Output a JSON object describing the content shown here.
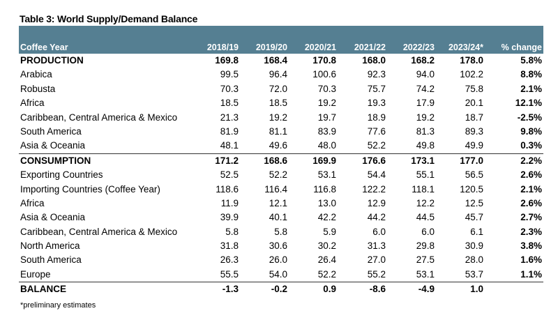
{
  "title": "Table 3: World Supply/Demand Balance",
  "header": [
    "Coffee Year",
    "2018/19",
    "2019/20",
    "2020/21",
    "2021/22",
    "2022/23",
    "2023/24*",
    "% change"
  ],
  "colors": {
    "header_bg": "#557f92",
    "header_text": "#ffffff"
  },
  "rows": [
    {
      "label": "PRODUCTION",
      "values": [
        "169.8",
        "168.4",
        "170.8",
        "168.0",
        "168.2",
        "178.0"
      ],
      "pct": "5.8%",
      "bold": true
    },
    {
      "label": "Arabica",
      "values": [
        "99.5",
        "96.4",
        "100.6",
        "92.3",
        "94.0",
        "102.2"
      ],
      "pct": "8.8%"
    },
    {
      "label": "Robusta",
      "values": [
        "70.3",
        "72.0",
        "70.3",
        "75.7",
        "74.2",
        "75.8"
      ],
      "pct": "2.1%"
    },
    {
      "label": "Africa",
      "values": [
        "18.5",
        "18.5",
        "19.2",
        "19.3",
        "17.9",
        "20.1"
      ],
      "pct": "12.1%"
    },
    {
      "label": "Caribbean, Central America & Mexico",
      "values": [
        "21.3",
        "19.2",
        "19.7",
        "18.9",
        "19.2",
        "18.7"
      ],
      "pct": "-2.5%"
    },
    {
      "label": "South America",
      "values": [
        "81.9",
        "81.1",
        "83.9",
        "77.6",
        "81.3",
        "89.3"
      ],
      "pct": "9.8%"
    },
    {
      "label": "Asia & Oceania",
      "values": [
        "48.1",
        "49.6",
        "48.0",
        "52.2",
        "49.8",
        "49.9"
      ],
      "pct": "0.3%"
    },
    {
      "label": "CONSUMPTION",
      "values": [
        "171.2",
        "168.6",
        "169.9",
        "176.6",
        "173.1",
        "177.0"
      ],
      "pct": "2.2%",
      "bold": true,
      "sep": true
    },
    {
      "label": "Exporting Countries",
      "values": [
        "52.5",
        "52.2",
        "53.1",
        "54.4",
        "55.1",
        "56.5"
      ],
      "pct": "2.6%"
    },
    {
      "label": "Importing Countries (Coffee Year)",
      "values": [
        "118.6",
        "116.4",
        "116.8",
        "122.2",
        "118.1",
        "120.5"
      ],
      "pct": "2.1%"
    },
    {
      "label": "Africa",
      "values": [
        "11.9",
        "12.1",
        "13.0",
        "12.9",
        "12.2",
        "12.5"
      ],
      "pct": "2.6%"
    },
    {
      "label": "Asia & Oceania",
      "values": [
        "39.9",
        "40.1",
        "42.2",
        "44.2",
        "44.5",
        "45.7"
      ],
      "pct": "2.7%"
    },
    {
      "label": "Caribbean, Central America & Mexico",
      "values": [
        "5.8",
        "5.8",
        "5.9",
        "6.0",
        "6.0",
        "6.1"
      ],
      "pct": "2.3%"
    },
    {
      "label": "North America",
      "values": [
        "31.8",
        "30.6",
        "30.2",
        "31.3",
        "29.8",
        "30.9"
      ],
      "pct": "3.8%"
    },
    {
      "label": "South America",
      "values": [
        "26.3",
        "26.0",
        "26.4",
        "27.0",
        "27.5",
        "28.0"
      ],
      "pct": "1.6%"
    },
    {
      "label": "Europe",
      "values": [
        "55.5",
        "54.0",
        "52.2",
        "55.2",
        "53.1",
        "53.7"
      ],
      "pct": "1.1%"
    },
    {
      "label": "BALANCE",
      "values": [
        "-1.3",
        "-0.2",
        "0.9",
        "-8.6",
        "-4.9",
        "1.0"
      ],
      "pct": "",
      "bold": true,
      "sep": true
    }
  ],
  "footnote": "*preliminary estimates"
}
